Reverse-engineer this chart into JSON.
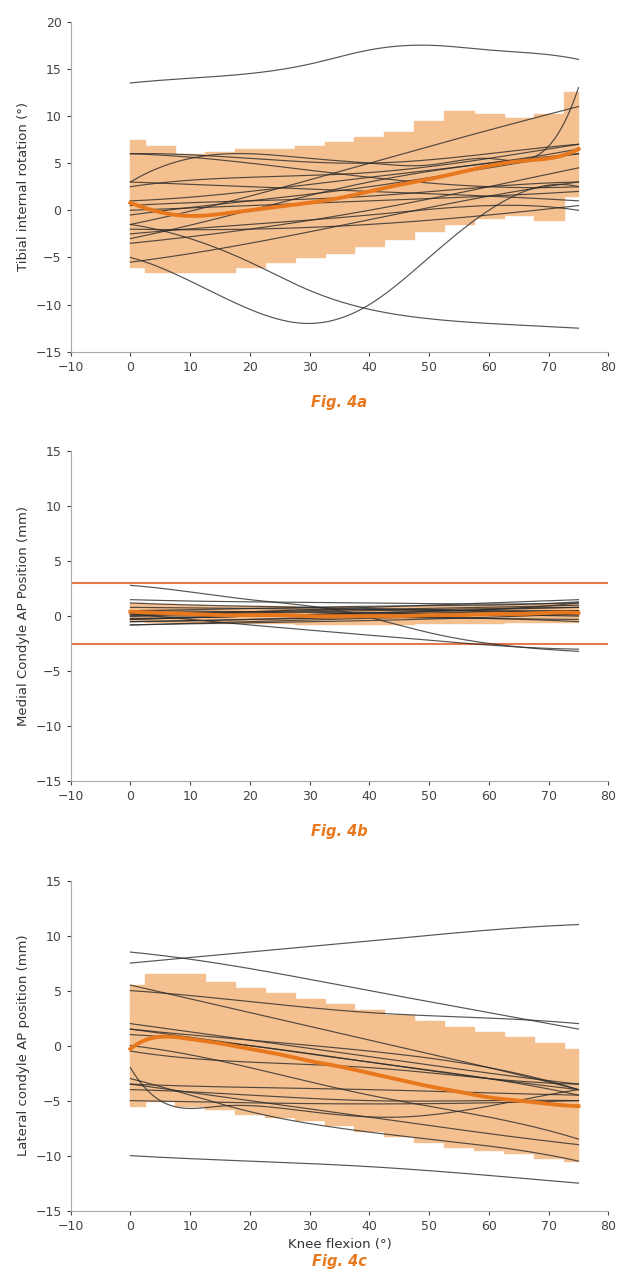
{
  "fig_size": [
    6.33,
    12.8
  ],
  "dpi": 100,
  "bg_color": "#ffffff",
  "orange_line": "#E8781E",
  "orange_shade": "#F5C090",
  "black_line": "#2a2a2a",
  "ref_line": "#E8784A",
  "xlim": [
    -10,
    80
  ],
  "ylim_a": [
    -15,
    20
  ],
  "ylim_b": [
    -15,
    15
  ],
  "ylim_c": [
    -15,
    15
  ],
  "xticks": [
    -10,
    0,
    10,
    20,
    30,
    40,
    50,
    60,
    70,
    80
  ],
  "yticks_a": [
    -15,
    -10,
    -5,
    0,
    5,
    10,
    15,
    20
  ],
  "yticks_b": [
    -15,
    -10,
    -5,
    0,
    5,
    10,
    15
  ],
  "yticks_c": [
    -15,
    -10,
    -5,
    0,
    5,
    10,
    15
  ],
  "ylabel_a": "Tibial internal rotation (°)",
  "ylabel_b": "Medial Condyle AP Position (mm)",
  "ylabel_c": "Lateral condyle AP position (mm)",
  "xlabel_c": "Knee flexion (°)",
  "label_a": "Fig. 4a",
  "label_b": "Fig. 4b",
  "label_c": "Fig. 4c",
  "mean_a_x": [
    0,
    5,
    10,
    15,
    20,
    25,
    30,
    35,
    40,
    45,
    50,
    55,
    60,
    65,
    70,
    75
  ],
  "mean_a_y": [
    0.8,
    -0.2,
    -0.6,
    -0.4,
    0.0,
    0.4,
    0.8,
    1.3,
    2.0,
    2.7,
    3.3,
    4.0,
    4.7,
    5.2,
    5.5,
    6.5
  ],
  "sd_a_upper": [
    7.5,
    6.8,
    6.0,
    6.2,
    6.5,
    6.5,
    6.8,
    7.2,
    7.8,
    8.3,
    9.5,
    10.5,
    10.2,
    9.8,
    10.2,
    12.5
  ],
  "sd_a_lower": [
    -6.0,
    -6.5,
    -6.5,
    -6.5,
    -6.0,
    -5.5,
    -5.0,
    -4.5,
    -3.8,
    -3.0,
    -2.2,
    -1.5,
    -0.8,
    -0.5,
    -1.0,
    1.5
  ],
  "indiv_a": [
    [
      [
        0,
        10,
        20,
        30,
        40,
        50,
        60,
        70,
        75
      ],
      [
        13.5,
        14.0,
        14.5,
        15.5,
        17.0,
        17.5,
        17.0,
        16.5,
        16.0
      ]
    ],
    [
      [
        0,
        10,
        20,
        30,
        40,
        50,
        60,
        70,
        75
      ],
      [
        3.0,
        5.5,
        6.0,
        5.5,
        5.0,
        4.8,
        5.5,
        6.8,
        13.0
      ]
    ],
    [
      [
        0,
        20,
        40,
        60,
        75
      ],
      [
        6.0,
        5.5,
        5.0,
        6.0,
        7.0
      ]
    ],
    [
      [
        0,
        20,
        40,
        60,
        75
      ],
      [
        2.5,
        3.5,
        4.0,
        5.5,
        7.0
      ]
    ],
    [
      [
        0,
        10,
        20,
        30,
        40,
        50,
        60,
        75
      ],
      [
        -1.5,
        -3.0,
        -5.5,
        -8.5,
        -10.5,
        -11.5,
        -12.0,
        -12.5
      ]
    ],
    [
      [
        0,
        20,
        40,
        60,
        75
      ],
      [
        -0.5,
        1.0,
        2.5,
        4.5,
        6.0
      ]
    ],
    [
      [
        0,
        20,
        40,
        60,
        75
      ],
      [
        0.5,
        1.0,
        1.5,
        2.5,
        3.0
      ]
    ],
    [
      [
        0,
        20,
        40,
        60,
        75
      ],
      [
        -2.5,
        -1.5,
        -0.5,
        0.5,
        0.0
      ]
    ],
    [
      [
        0,
        10,
        20,
        30,
        40,
        50,
        60,
        75
      ],
      [
        -5.0,
        -7.5,
        -10.5,
        -12.0,
        -10.0,
        -5.0,
        0.0,
        2.5
      ]
    ],
    [
      [
        0,
        20,
        40,
        60,
        75
      ],
      [
        -5.5,
        -3.5,
        -1.0,
        1.5,
        3.0
      ]
    ],
    [
      [
        0,
        20,
        40,
        60,
        75
      ],
      [
        6.0,
        5.0,
        3.5,
        2.5,
        2.5
      ]
    ],
    [
      [
        0,
        20,
        40,
        60,
        75
      ],
      [
        -3.0,
        0.0,
        3.0,
        5.0,
        6.0
      ]
    ],
    [
      [
        0,
        20,
        40,
        60,
        75
      ],
      [
        3.0,
        2.5,
        2.0,
        1.5,
        1.0
      ]
    ],
    [
      [
        0,
        20,
        40,
        60,
        75
      ],
      [
        -2.0,
        -2.0,
        -1.5,
        -0.5,
        0.5
      ]
    ],
    [
      [
        0,
        20,
        40,
        60,
        75
      ],
      [
        -1.5,
        1.5,
        5.0,
        8.5,
        11.0
      ]
    ],
    [
      [
        0,
        20,
        40,
        60,
        75
      ],
      [
        1.0,
        2.0,
        3.5,
        5.0,
        6.5
      ]
    ],
    [
      [
        0,
        20,
        40,
        60,
        75
      ],
      [
        -3.5,
        -2.0,
        0.0,
        2.5,
        4.5
      ]
    ],
    [
      [
        0,
        20,
        40,
        60,
        75
      ],
      [
        0.0,
        0.5,
        1.0,
        1.5,
        2.0
      ]
    ]
  ],
  "mean_b_x": [
    0,
    5,
    10,
    15,
    20,
    25,
    30,
    35,
    40,
    45,
    50,
    55,
    60,
    65,
    70,
    75
  ],
  "mean_b_y": [
    0.4,
    0.3,
    0.2,
    0.1,
    0.1,
    0.1,
    0.0,
    0.0,
    0.0,
    0.0,
    0.1,
    0.1,
    0.2,
    0.2,
    0.3,
    0.3
  ],
  "sd_b_upper": [
    1.2,
    1.1,
    1.0,
    0.9,
    0.9,
    0.9,
    0.8,
    0.8,
    0.8,
    0.8,
    0.9,
    0.9,
    1.0,
    1.0,
    1.1,
    1.1
  ],
  "sd_b_lower": [
    -0.4,
    -0.5,
    -0.6,
    -0.6,
    -0.6,
    -0.6,
    -0.7,
    -0.7,
    -0.7,
    -0.7,
    -0.6,
    -0.6,
    -0.6,
    -0.5,
    -0.5,
    -0.5
  ],
  "ref_b_upper": 3.0,
  "ref_b_lower": -2.5,
  "indiv_b": [
    [
      [
        0,
        20,
        40,
        60,
        75
      ],
      [
        0.5,
        0.7,
        0.9,
        1.0,
        1.3
      ]
    ],
    [
      [
        0,
        20,
        40,
        60,
        75
      ],
      [
        1.5,
        1.3,
        1.2,
        1.1,
        1.2
      ]
    ],
    [
      [
        0,
        20,
        40,
        60,
        75
      ],
      [
        0.0,
        0.0,
        -0.1,
        -0.2,
        -0.3
      ]
    ],
    [
      [
        0,
        10,
        20,
        35,
        50,
        65,
        75
      ],
      [
        2.8,
        2.2,
        1.5,
        0.5,
        -1.5,
        -2.8,
        -3.2
      ]
    ],
    [
      [
        0,
        20,
        40,
        60,
        75
      ],
      [
        -0.3,
        0.0,
        0.2,
        0.4,
        0.5
      ]
    ],
    [
      [
        0,
        20,
        40,
        60,
        75
      ],
      [
        0.8,
        0.7,
        0.6,
        0.5,
        0.5
      ]
    ],
    [
      [
        0,
        20,
        40,
        60,
        75
      ],
      [
        0.2,
        0.4,
        0.6,
        0.8,
        1.0
      ]
    ],
    [
      [
        0,
        20,
        40,
        60,
        75
      ],
      [
        -0.5,
        -0.3,
        0.0,
        0.2,
        0.3
      ]
    ],
    [
      [
        0,
        20,
        40,
        60,
        75
      ],
      [
        -0.2,
        0.0,
        0.3,
        0.6,
        1.2
      ]
    ],
    [
      [
        0,
        20,
        40,
        60,
        75
      ],
      [
        0.3,
        0.2,
        0.0,
        -0.2,
        -0.5
      ]
    ],
    [
      [
        0,
        20,
        40,
        60,
        75
      ],
      [
        0.1,
        0.3,
        0.5,
        0.7,
        0.8
      ]
    ],
    [
      [
        0,
        20,
        40,
        60,
        75
      ],
      [
        1.2,
        0.9,
        0.7,
        0.4,
        0.2
      ]
    ],
    [
      [
        0,
        20,
        40,
        60,
        75
      ],
      [
        0.5,
        0.4,
        0.3,
        0.2,
        0.1
      ]
    ],
    [
      [
        0,
        20,
        40,
        60,
        75
      ],
      [
        -0.8,
        -0.6,
        -0.4,
        -0.1,
        0.2
      ]
    ],
    [
      [
        0,
        20,
        40,
        60,
        75
      ],
      [
        0.0,
        0.4,
        0.8,
        1.2,
        1.5
      ]
    ],
    [
      [
        0,
        20,
        40,
        60,
        75
      ],
      [
        -0.3,
        0.0,
        0.3,
        0.6,
        0.8
      ]
    ],
    [
      [
        0,
        10,
        20,
        35,
        50,
        65,
        75
      ],
      [
        0.2,
        -0.3,
        -0.8,
        -1.5,
        -2.2,
        -2.8,
        -3.0
      ]
    ],
    [
      [
        0,
        20,
        40,
        60,
        75
      ],
      [
        -0.8,
        -0.5,
        -0.2,
        0.1,
        0.2
      ]
    ],
    [
      [
        0,
        20,
        40,
        60,
        75
      ],
      [
        0.3,
        0.2,
        0.1,
        0.1,
        0.0
      ]
    ],
    [
      [
        0,
        20,
        40,
        60,
        75
      ],
      [
        -0.5,
        -0.3,
        -0.1,
        0.1,
        0.3
      ]
    ]
  ],
  "mean_c_x": [
    0,
    5,
    10,
    15,
    20,
    25,
    30,
    35,
    40,
    45,
    50,
    55,
    60,
    65,
    70,
    75
  ],
  "mean_c_y": [
    -0.3,
    0.8,
    0.6,
    0.2,
    -0.3,
    -0.8,
    -1.4,
    -1.9,
    -2.5,
    -3.1,
    -3.7,
    -4.2,
    -4.7,
    -5.0,
    -5.3,
    -5.5
  ],
  "sd_c_upper": [
    5.5,
    6.5,
    6.5,
    5.8,
    5.2,
    4.8,
    4.2,
    3.8,
    3.2,
    2.8,
    2.2,
    1.7,
    1.2,
    0.8,
    0.2,
    -0.3
  ],
  "sd_c_lower": [
    -5.5,
    -5.0,
    -5.5,
    -5.8,
    -6.2,
    -6.5,
    -6.8,
    -7.2,
    -7.8,
    -8.2,
    -8.8,
    -9.2,
    -9.5,
    -9.8,
    -10.2,
    -10.5
  ],
  "indiv_c": [
    [
      [
        0,
        20,
        40,
        60,
        75
      ],
      [
        -0.5,
        -1.5,
        -2.0,
        -3.0,
        -3.5
      ]
    ],
    [
      [
        0,
        20,
        40,
        60,
        75
      ],
      [
        1.5,
        0.5,
        -0.5,
        -2.0,
        -4.0
      ]
    ],
    [
      [
        0,
        20,
        40,
        60,
        75
      ],
      [
        8.5,
        7.0,
        5.0,
        3.0,
        1.5
      ]
    ],
    [
      [
        0,
        20,
        40,
        60,
        75
      ],
      [
        7.5,
        8.5,
        9.5,
        10.5,
        11.0
      ]
    ],
    [
      [
        0,
        20,
        40,
        60,
        75
      ],
      [
        5.0,
        4.0,
        3.0,
        2.5,
        2.0
      ]
    ],
    [
      [
        0,
        20,
        40,
        60,
        75
      ],
      [
        -4.0,
        -4.5,
        -5.0,
        -5.0,
        -5.0
      ]
    ],
    [
      [
        0,
        20,
        40,
        60,
        75
      ],
      [
        2.0,
        0.5,
        -1.0,
        -2.5,
        -3.5
      ]
    ],
    [
      [
        0,
        20,
        40,
        60,
        75
      ],
      [
        -3.5,
        -3.8,
        -4.0,
        -4.3,
        -4.5
      ]
    ],
    [
      [
        0,
        20,
        40,
        60,
        75
      ],
      [
        -5.0,
        -5.2,
        -5.3,
        -5.2,
        -5.0
      ]
    ],
    [
      [
        0,
        20,
        40,
        60,
        75
      ],
      [
        1.0,
        0.0,
        -1.5,
        -3.0,
        -4.0
      ]
    ],
    [
      [
        0,
        10,
        20,
        35,
        50,
        65,
        75
      ],
      [
        -3.0,
        -4.5,
        -6.0,
        -7.5,
        -8.5,
        -9.5,
        -10.5
      ]
    ],
    [
      [
        0,
        20,
        40,
        60,
        75
      ],
      [
        -10.0,
        -10.5,
        -11.0,
        -11.8,
        -12.5
      ]
    ],
    [
      [
        0,
        20,
        40,
        60,
        75
      ],
      [
        0.0,
        -2.0,
        -4.5,
        -6.5,
        -8.5
      ]
    ],
    [
      [
        0,
        20,
        40,
        60,
        75
      ],
      [
        1.5,
        0.0,
        -1.5,
        -3.0,
        -4.5
      ]
    ],
    [
      [
        0,
        20,
        40,
        60,
        75
      ],
      [
        -3.5,
        -5.0,
        -6.5,
        -8.0,
        -9.0
      ]
    ],
    [
      [
        0,
        5,
        15,
        30,
        45,
        60,
        75
      ],
      [
        -2.0,
        -5.0,
        -5.5,
        -6.0,
        -6.5,
        -5.5,
        -4.0
      ]
    ],
    [
      [
        0,
        20,
        40,
        60,
        75
      ],
      [
        5.5,
        3.0,
        0.5,
        -2.0,
        -4.0
      ]
    ]
  ]
}
